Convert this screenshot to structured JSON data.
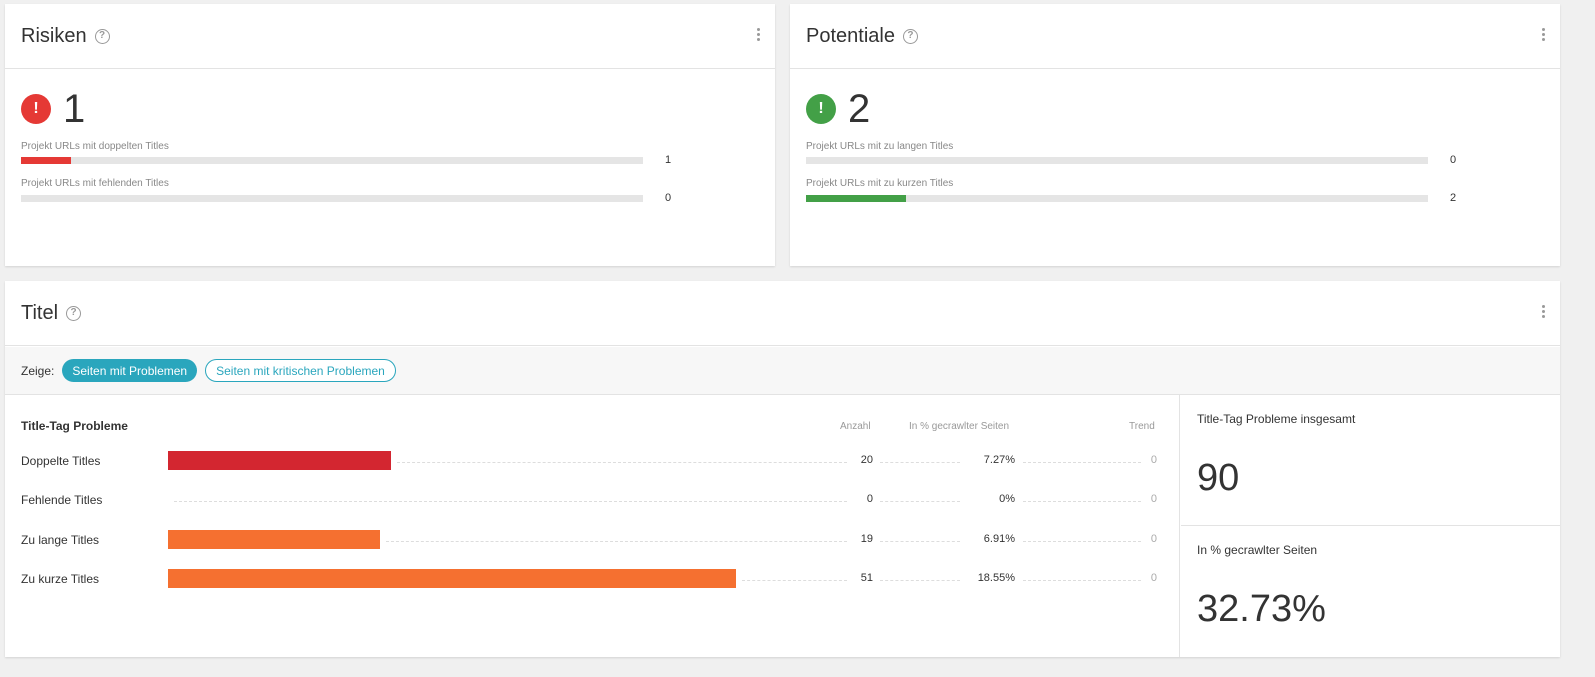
{
  "risks": {
    "title": "Risiken",
    "count": "1",
    "alert_symbol": "!",
    "alert_color": "#e53935",
    "rows": [
      {
        "label": "Projekt URLs mit doppelten Titles",
        "value": "1",
        "fill": 0.08
      },
      {
        "label": "Projekt URLs mit fehlenden Titles",
        "value": "0",
        "fill": 0
      }
    ]
  },
  "potentials": {
    "title": "Potentiale",
    "count": "2",
    "alert_symbol": "!",
    "alert_color": "#43a047",
    "rows": [
      {
        "label": "Projekt URLs mit zu langen Titles",
        "value": "0",
        "fill": 0
      },
      {
        "label": "Projekt URLs mit zu kurzen Titles",
        "value": "2",
        "fill": 0.16
      }
    ]
  },
  "titel": {
    "title": "Titel",
    "filter_label": "Zeige:",
    "filters": [
      "Seiten mit Problemen",
      "Seiten mit kritischen Problemen"
    ],
    "table": {
      "header": "Title-Tag Probleme",
      "col_count": "Anzahl",
      "col_pct": "In % gecrawlter Seiten",
      "col_trend": "Trend",
      "max_count": 51,
      "rows": [
        {
          "label": "Doppelte Titles",
          "count": "20",
          "pct": "7.27%",
          "trend": "0",
          "color": "#d32630"
        },
        {
          "label": "Fehlende Titles",
          "count": "0",
          "pct": "0%",
          "trend": "0",
          "color": "#f57030"
        },
        {
          "label": "Zu lange Titles",
          "count": "19",
          "pct": "6.91%",
          "trend": "0",
          "color": "#f57030"
        },
        {
          "label": "Zu kurze Titles",
          "count": "51",
          "pct": "18.55%",
          "trend": "0",
          "color": "#f57030"
        }
      ]
    },
    "summary": {
      "total_label": "Title-Tag Probleme insgesamt",
      "total_value": "90",
      "pct_label": "In % gecrawlter Seiten",
      "pct_value": "32.73%"
    }
  },
  "colors": {
    "accent": "#2aa6bd"
  }
}
